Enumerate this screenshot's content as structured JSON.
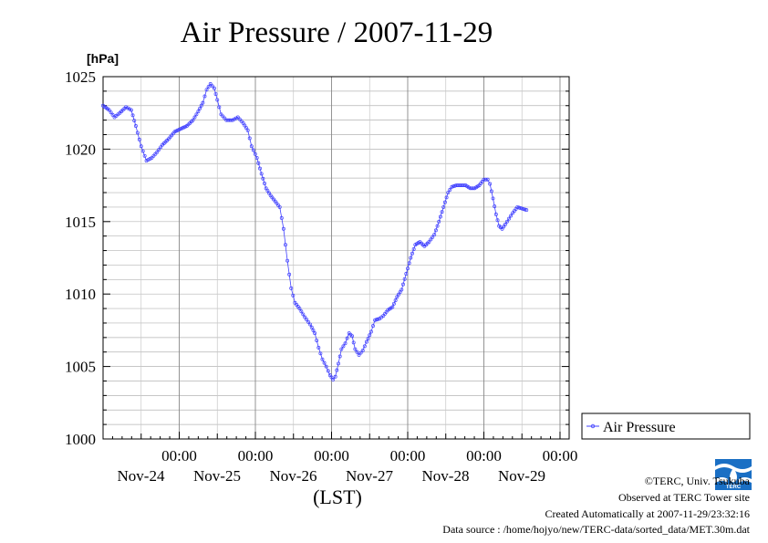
{
  "chart_data": {
    "type": "line",
    "title": "Air Pressure / 2007-11-29",
    "ylabel": "[hPa]",
    "xlabel": "(LST)",
    "ylim": [
      1000,
      1025
    ],
    "yticks": [
      1000,
      1005,
      1010,
      1015,
      1020,
      1025
    ],
    "ytick_labels": [
      "1000",
      "1005",
      "1010",
      "1015",
      "1020",
      "1025"
    ],
    "xlim": [
      0,
      6
    ],
    "x_unit": "days after 2007-11-23 00:00 LST",
    "xticks": [
      {
        "x": 1,
        "time": "00:00",
        "date": "Nov-24"
      },
      {
        "x": 2,
        "time": "00:00",
        "date": "Nov-25"
      },
      {
        "x": 3,
        "time": "00:00",
        "date": "Nov-26"
      },
      {
        "x": 4,
        "time": "00:00",
        "date": "Nov-27"
      },
      {
        "x": 5,
        "time": "00:00",
        "date": "Nov-28"
      },
      {
        "x": 6,
        "time": "00:00",
        "date": "Nov-29"
      }
    ],
    "grid": true,
    "legend_position": "right",
    "series": [
      {
        "name": "Air Pressure",
        "color": "#4040ff",
        "points": [
          [
            0,
            1023.0
          ],
          [
            0.08,
            1022.7
          ],
          [
            0.15,
            1022.2
          ],
          [
            0.22,
            1022.5
          ],
          [
            0.3,
            1022.9
          ],
          [
            0.37,
            1022.7
          ],
          [
            0.43,
            1021.6
          ],
          [
            0.5,
            1020.2
          ],
          [
            0.57,
            1019.2
          ],
          [
            0.64,
            1019.4
          ],
          [
            0.71,
            1019.8
          ],
          [
            0.78,
            1020.3
          ],
          [
            0.86,
            1020.7
          ],
          [
            0.94,
            1021.2
          ],
          [
            1.02,
            1021.4
          ],
          [
            1.1,
            1021.6
          ],
          [
            1.18,
            1022.0
          ],
          [
            1.25,
            1022.6
          ],
          [
            1.31,
            1023.2
          ],
          [
            1.36,
            1024.1
          ],
          [
            1.41,
            1024.5
          ],
          [
            1.46,
            1024.2
          ],
          [
            1.5,
            1023.4
          ],
          [
            1.55,
            1022.4
          ],
          [
            1.62,
            1022.0
          ],
          [
            1.7,
            1022.0
          ],
          [
            1.77,
            1022.2
          ],
          [
            1.84,
            1021.8
          ],
          [
            1.9,
            1021.3
          ],
          [
            1.95,
            1020.2
          ],
          [
            2.02,
            1019.4
          ],
          [
            2.08,
            1018.3
          ],
          [
            2.14,
            1017.3
          ],
          [
            2.2,
            1016.8
          ],
          [
            2.26,
            1016.4
          ],
          [
            2.32,
            1016.0
          ],
          [
            2.37,
            1014.5
          ],
          [
            2.42,
            1012.3
          ],
          [
            2.47,
            1010.4
          ],
          [
            2.52,
            1009.4
          ],
          [
            2.58,
            1009.0
          ],
          [
            2.65,
            1008.4
          ],
          [
            2.72,
            1007.9
          ],
          [
            2.78,
            1007.3
          ],
          [
            2.83,
            1006.3
          ],
          [
            2.88,
            1005.5
          ],
          [
            2.93,
            1005.0
          ],
          [
            2.98,
            1004.4
          ],
          [
            3.02,
            1004.1
          ],
          [
            3.05,
            1004.3
          ],
          [
            3.09,
            1005.2
          ],
          [
            3.13,
            1006.2
          ],
          [
            3.18,
            1006.6
          ],
          [
            3.23,
            1007.3
          ],
          [
            3.27,
            1007.1
          ],
          [
            3.31,
            1006.2
          ],
          [
            3.36,
            1005.8
          ],
          [
            3.41,
            1006.1
          ],
          [
            3.46,
            1006.7
          ],
          [
            3.52,
            1007.4
          ],
          [
            3.57,
            1008.2
          ],
          [
            3.63,
            1008.3
          ],
          [
            3.68,
            1008.5
          ],
          [
            3.74,
            1008.9
          ],
          [
            3.8,
            1009.1
          ],
          [
            3.86,
            1009.8
          ],
          [
            3.92,
            1010.3
          ],
          [
            3.98,
            1011.4
          ],
          [
            4.04,
            1012.5
          ],
          [
            4.1,
            1013.4
          ],
          [
            4.16,
            1013.6
          ],
          [
            4.22,
            1013.3
          ],
          [
            4.28,
            1013.6
          ],
          [
            4.35,
            1014.1
          ],
          [
            4.41,
            1015.0
          ],
          [
            4.47,
            1016.0
          ],
          [
            4.53,
            1017.0
          ],
          [
            4.58,
            1017.4
          ],
          [
            4.64,
            1017.5
          ],
          [
            4.7,
            1017.5
          ],
          [
            4.76,
            1017.5
          ],
          [
            4.82,
            1017.3
          ],
          [
            4.88,
            1017.3
          ],
          [
            4.94,
            1017.5
          ],
          [
            5.0,
            1017.9
          ],
          [
            5.05,
            1017.9
          ],
          [
            5.08,
            1017.6
          ],
          [
            5.12,
            1016.6
          ],
          [
            5.16,
            1015.5
          ],
          [
            5.2,
            1014.7
          ],
          [
            5.24,
            1014.5
          ],
          [
            5.28,
            1014.8
          ],
          [
            5.33,
            1015.2
          ],
          [
            5.38,
            1015.6
          ],
          [
            5.44,
            1016.0
          ],
          [
            5.5,
            1015.9
          ],
          [
            5.56,
            1015.8
          ]
        ]
      }
    ]
  },
  "legend": {
    "label": "Air Pressure"
  },
  "footer": {
    "copyright": "©TERC, Univ. Tsukuba",
    "observed": "Observed at TERC Tower site",
    "created": "Created Automatically at 2007-11-29/23:32:16",
    "source": "Data source : /home/hojyo/new/TERC-data/sorted_data/MET.30m.dat"
  },
  "logo": {
    "label": "TERC",
    "color": "#1a6fc4"
  }
}
